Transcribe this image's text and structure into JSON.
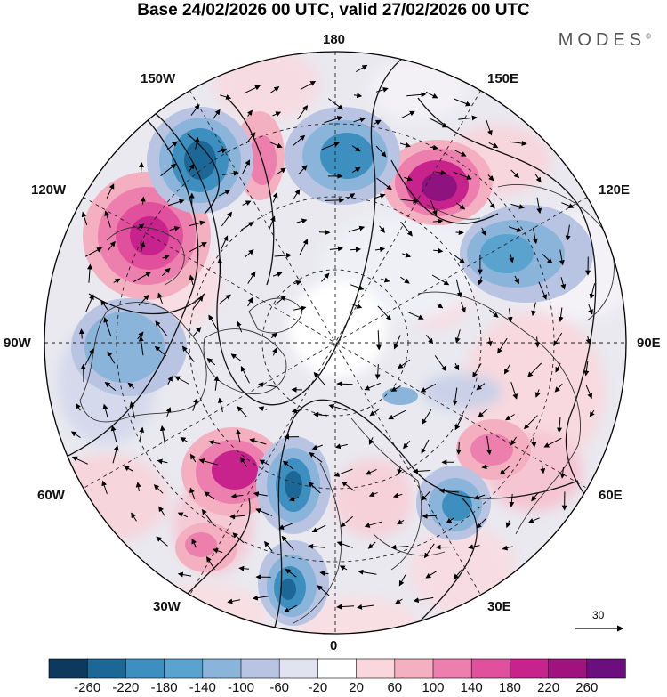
{
  "title": "Base 24/02/2026 00 UTC, valid 27/02/2026 00 UTC",
  "brand": "MODES",
  "brand_mark": "©",
  "longitude_labels": {
    "lon_180": "180",
    "lon_150w": "150W",
    "lon_150e": "150E",
    "lon_120w": "120W",
    "lon_120e": "120E",
    "lon_90w": "90W",
    "lon_90e": "90E",
    "lon_60w": "60W",
    "lon_60e": "60E",
    "lon_30w": "30W",
    "lon_30e": "30E",
    "lon_0": "0"
  },
  "colorbar": {
    "colors": [
      "#0d3a5c",
      "#1d6796",
      "#3d8fc0",
      "#5ba3cf",
      "#8bb4da",
      "#b8c4e2",
      "#e2e3f0",
      "#ffffff",
      "#f9d7dc",
      "#f4b0c0",
      "#ec7fad",
      "#e0509c",
      "#c8238d",
      "#a0127e",
      "#6b0f7e"
    ],
    "tick_labels": [
      "-260",
      "-220",
      "-180",
      "-140",
      "-100",
      "-60",
      "-20",
      "20",
      "60",
      "100",
      "140",
      "180",
      "220",
      "260"
    ]
  },
  "reference_vector": {
    "label": "30"
  },
  "anomaly_field": {
    "highs": [
      {
        "name": "positive-anomaly-west-pacific",
        "value": 230
      },
      {
        "name": "positive-anomaly-north-pacific-west",
        "value": 200
      },
      {
        "name": "positive-anomaly-central-pacific",
        "value": 80
      },
      {
        "name": "positive-anomaly-central-asia",
        "value": 150
      },
      {
        "name": "positive-anomaly-north-atlantic",
        "value": 190
      },
      {
        "name": "positive-anomaly-subtropical-atlantic",
        "value": 100
      }
    ],
    "lows": [
      {
        "name": "negative-anomaly-gulf-of-alaska",
        "value": -220
      },
      {
        "name": "negative-anomaly-north-pacific",
        "value": -170
      },
      {
        "name": "negative-anomaly-east-siberia",
        "value": -150
      },
      {
        "name": "negative-anomaly-north-america",
        "value": -110
      },
      {
        "name": "negative-anomaly-eastern-atlantic",
        "value": -210
      },
      {
        "name": "negative-anomaly-subtropical-atlantic",
        "value": -200
      },
      {
        "name": "negative-anomaly-eastern-europe",
        "value": -190
      }
    ]
  }
}
